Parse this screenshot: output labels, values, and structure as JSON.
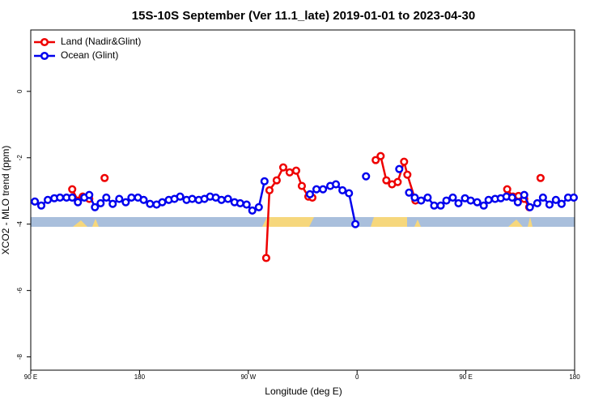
{
  "chart_data": {
    "type": "line",
    "title": "15S-10S September (Ver 11.1_late)   2019-01-01 to 2023-04-30",
    "xlabel": "Longitude (deg E)",
    "ylabel": "XCO2 - MLO trend (ppm)",
    "xlim": [
      90,
      540
    ],
    "xticks": [
      {
        "value": 90,
        "label": "90 E"
      },
      180,
      {
        "value": 270,
        "label": "90 W"
      },
      {
        "value": 360,
        "label": "0"
      },
      {
        "value": 450,
        "label": "90 E"
      },
      {
        "value": 540,
        "label": "180"
      }
    ],
    "ylim": [
      -8.4,
      1.85
    ],
    "yticks": [
      0,
      -2,
      -4,
      -6,
      -8
    ],
    "legend": "top-left",
    "series": [
      {
        "name": "Land (Nadir&Glint)",
        "color": "#ee0000",
        "x": [
          124.3,
          129.0,
          133.0,
          138.4,
          null,
          151.1,
          null,
          284.8,
          287.5,
          293.5,
          298.9,
          304.2,
          309.6,
          314.3,
          319.7,
          323.0,
          null,
          375.4,
          379.5,
          384.2,
          388.9,
          393.6,
          398.9,
          401.6,
          408.3,
          null,
          484.2,
          488.9,
          493.6,
          498.3,
          502.4,
          null,
          511.8
        ],
        "values": [
          -2.95,
          -3.29,
          -3.17,
          -3.24,
          null,
          -2.61,
          null,
          -5.02,
          -2.98,
          -2.68,
          -2.29,
          -2.44,
          -2.39,
          -2.85,
          -3.17,
          -3.2,
          null,
          -2.07,
          -1.95,
          -2.68,
          -2.8,
          -2.73,
          -2.12,
          -2.51,
          -3.29,
          null,
          -2.95,
          -3.17,
          -3.15,
          -3.24,
          -3.49,
          null,
          -2.61
        ]
      },
      {
        "name": "Ocean (Glint)",
        "color": "#0000ee",
        "x": [
          93.4,
          98.7,
          104.1,
          109.5,
          114.2,
          119.6,
          124.3,
          129.0,
          134.3,
          138.4,
          143.1,
          147.8,
          152.5,
          157.8,
          163.2,
          168.6,
          173.3,
          178.7,
          183.4,
          188.7,
          194.1,
          198.8,
          204.2,
          208.9,
          213.6,
          218.9,
          223.6,
          229.0,
          233.7,
          238.4,
          243.1,
          247.8,
          253.2,
          258.6,
          263.3,
          268.6,
          273.3,
          278.7,
          283.4,
          null,
          321.0,
          326.4,
          331.8,
          337.8,
          342.5,
          347.9,
          353.3,
          358.6,
          null,
          367.4,
          null,
          394.9,
          null,
          403.0,
          407.7,
          413.0,
          418.4,
          423.8,
          429.2,
          433.9,
          439.2,
          443.9,
          449.3,
          454.0,
          459.4,
          464.8,
          468.8,
          474.2,
          478.9,
          483.6,
          488.3,
          493.0,
          498.3,
          503.0,
          509.1,
          513.8,
          519.2,
          524.5,
          529.2,
          534.6,
          539.3
        ],
        "values": [
          -3.32,
          -3.44,
          -3.27,
          -3.22,
          -3.2,
          -3.2,
          -3.2,
          -3.34,
          -3.2,
          -3.12,
          -3.49,
          -3.37,
          -3.2,
          -3.39,
          -3.24,
          -3.34,
          -3.2,
          -3.2,
          -3.27,
          -3.39,
          -3.41,
          -3.34,
          -3.27,
          -3.24,
          -3.17,
          -3.27,
          -3.24,
          -3.27,
          -3.24,
          -3.17,
          -3.2,
          -3.27,
          -3.24,
          -3.34,
          -3.37,
          -3.41,
          -3.59,
          -3.49,
          -2.71,
          null,
          -3.1,
          -2.95,
          -2.95,
          -2.85,
          -2.8,
          -2.98,
          -3.07,
          -4.0,
          null,
          -2.56,
          null,
          -2.34,
          null,
          -3.05,
          -3.2,
          -3.29,
          -3.2,
          -3.44,
          -3.44,
          -3.29,
          -3.2,
          -3.37,
          -3.22,
          -3.29,
          -3.34,
          -3.44,
          -3.27,
          -3.24,
          -3.22,
          -3.17,
          -3.2,
          -3.34,
          -3.12,
          -3.49,
          -3.37,
          -3.2,
          -3.41,
          -3.27,
          -3.39,
          -3.2,
          -3.2
        ]
      }
    ]
  }
}
